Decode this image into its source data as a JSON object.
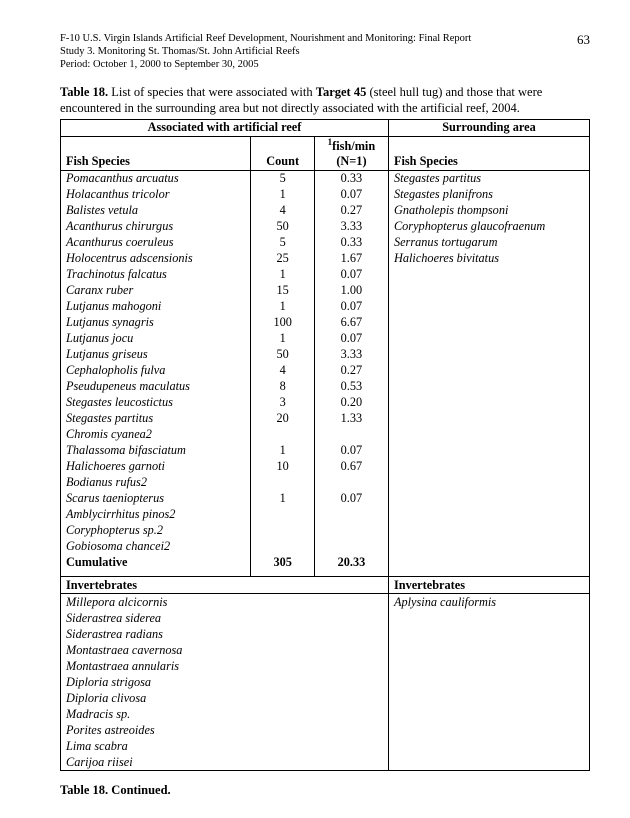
{
  "pageNumber": "63",
  "header": {
    "line1": "F-10 U.S. Virgin Islands Artificial Reef Development, Nourishment and Monitoring: Final Report",
    "line2": "Study 3.  Monitoring St. Thomas/St. John Artificial Reefs",
    "line3": "Period:  October 1, 2000 to September 30, 2005"
  },
  "caption": {
    "lead": "Table 18.",
    "part1": "  List of species that were associated with ",
    "bold": "Target 45",
    "part2": " (steel hull tug) and those that were encountered in the surrounding area but not directly associated with the artificial reef, 2004."
  },
  "tableHeaders": {
    "assocTitle": "Associated with artificial reef",
    "surroundTitle": "Surrounding area",
    "fishSpecies": "Fish Species",
    "count": "Count",
    "rateSup": "1",
    "rateLabel": "fish/min (N=1)"
  },
  "fishRows": [
    {
      "l": "Pomacanthus arcuatus",
      "c": "5",
      "r": "0.33",
      "s": "Stegastes partitus"
    },
    {
      "l": "Holacanthus tricolor",
      "c": "1",
      "r": "0.07",
      "s": "Stegastes planifrons"
    },
    {
      "l": "Balistes vetula",
      "c": "4",
      "r": "0.27",
      "s": "Gnatholepis thompsoni"
    },
    {
      "l": "Acanthurus chirurgus",
      "c": "50",
      "r": "3.33",
      "s": "Coryphopterus glaucofraenum"
    },
    {
      "l": "Acanthurus coeruleus",
      "c": "5",
      "r": "0.33",
      "s": "Serranus tortugarum"
    },
    {
      "l": "Holocentrus adscensionis",
      "c": "25",
      "r": "1.67",
      "s": "Halichoeres bivitatus"
    },
    {
      "l": "Trachinotus falcatus",
      "c": "1",
      "r": "0.07",
      "s": ""
    },
    {
      "l": "Caranx ruber",
      "c": "15",
      "r": "1.00",
      "s": ""
    },
    {
      "l": "Lutjanus mahogoni",
      "c": "1",
      "r": "0.07",
      "s": ""
    },
    {
      "l": "Lutjanus synagris",
      "c": "100",
      "r": "6.67",
      "s": ""
    },
    {
      "l": "Lutjanus jocu",
      "c": "1",
      "r": "0.07",
      "s": ""
    },
    {
      "l": "Lutjanus griseus",
      "c": "50",
      "r": "3.33",
      "s": ""
    },
    {
      "l": "Cephalopholis fulva",
      "c": "4",
      "r": "0.27",
      "s": ""
    },
    {
      "l": "Pseudupeneus maculatus",
      "c": "8",
      "r": "0.53",
      "s": ""
    },
    {
      "l": "Stegastes leucostictus",
      "c": "3",
      "r": "0.20",
      "s": ""
    },
    {
      "l": "Stegastes partitus",
      "c": "20",
      "r": "1.33",
      "s": ""
    },
    {
      "l": "Chromis cyanea2",
      "c": "",
      "r": "",
      "s": ""
    },
    {
      "l": "Thalassoma bifasciatum",
      "c": "1",
      "r": "0.07",
      "s": ""
    },
    {
      "l": "Halichoeres garnoti",
      "c": "10",
      "r": "0.67",
      "s": ""
    },
    {
      "l": "Bodianus rufus2",
      "c": "",
      "r": "",
      "s": ""
    },
    {
      "l": "Scarus taeniopterus",
      "c": "1",
      "r": "0.07",
      "s": ""
    },
    {
      "l": "Amblycirrhitus pinos2",
      "c": "",
      "r": "",
      "s": ""
    },
    {
      "l": "Coryphopterus sp.2",
      "c": "",
      "r": "",
      "s": ""
    },
    {
      "l": "Gobiosoma chancei2",
      "c": "",
      "r": "",
      "s": ""
    }
  ],
  "cumulative": {
    "label": "Cumulative",
    "c": "305",
    "r": "20.33"
  },
  "invertHeader": {
    "left": "Invertebrates",
    "right": "Invertebrates"
  },
  "invertRows": [
    {
      "l": "Millepora alcicornis",
      "r": "Aplysina cauliformis"
    },
    {
      "l": "Siderastrea siderea",
      "r": ""
    },
    {
      "l": "Siderastrea radians",
      "r": ""
    },
    {
      "l": "Montastraea cavernosa",
      "r": ""
    },
    {
      "l": "Montastraea annularis",
      "r": ""
    },
    {
      "l": "Diploria strigosa",
      "r": ""
    },
    {
      "l": "Diploria clivosa",
      "r": ""
    },
    {
      "l": "Madracis sp.",
      "r": ""
    },
    {
      "l": "Porites astreoides",
      "r": ""
    },
    {
      "l": "Lima scabra",
      "r": ""
    },
    {
      "l": "Carijoa riisei",
      "r": ""
    }
  ],
  "continued": "Table 18.  Continued."
}
